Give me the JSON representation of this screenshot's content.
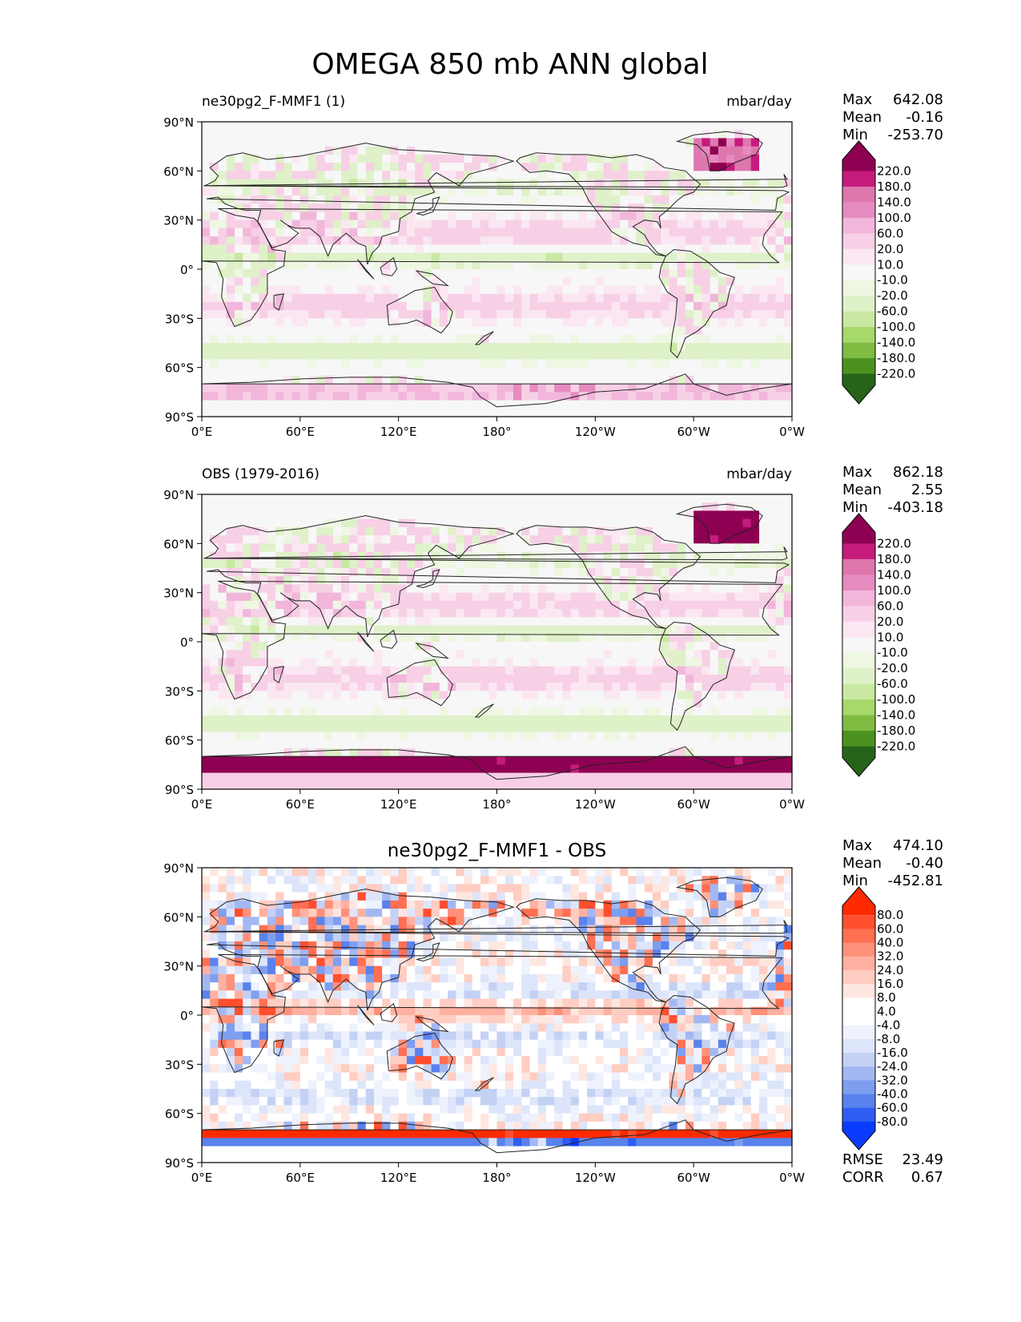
{
  "figure_title": "OMEGA 850 mb ANN global",
  "colors": {
    "pink_green": [
      "#276419",
      "#4d9221",
      "#7fbc41",
      "#a6d96a",
      "#c9e8a2",
      "#dff1c8",
      "#eef7e2",
      "#f7f7f7",
      "#fbe7f2",
      "#f7d0e6",
      "#f1b6da",
      "#e58bbf",
      "#de77ae",
      "#c51b7d",
      "#8e0152"
    ],
    "blue_red": [
      "#0a3cff",
      "#2f5ef4",
      "#5a82ec",
      "#7e9ef0",
      "#a3b8f2",
      "#c3d1f5",
      "#dde5fa",
      "#eef2fd",
      "#ffffff",
      "#ffffff",
      "#ffe7e1",
      "#ffcdc1",
      "#ffb0a0",
      "#ff9079",
      "#ff6f52",
      "#ff4f2e",
      "#ff2a00"
    ],
    "coast": "#222222"
  },
  "chart_data": [
    {
      "type": "heatmap",
      "panel_title_left": "ne30pg2_F-MMF1 (1)",
      "panel_title_center": "",
      "units": "mbar/day",
      "stats": [
        {
          "label": "Max",
          "value": "642.08"
        },
        {
          "label": "Mean",
          "value": "-0.16"
        },
        {
          "label": "Min",
          "value": "-253.70"
        }
      ],
      "colorbar_levels": [
        "220.0",
        "180.0",
        "140.0",
        "100.0",
        "60.0",
        "20.0",
        "10.0",
        "-10.0",
        "-20.0",
        "-60.0",
        "-100.0",
        "-140.0",
        "-180.0",
        "-220.0"
      ],
      "x_ticks": [
        "0°E",
        "60°E",
        "120°E",
        "180°",
        "120°W",
        "60°W",
        "0°W"
      ],
      "y_ticks": [
        "90°N",
        "60°N",
        "30°N",
        "0°",
        "30°S",
        "60°S",
        "90°S"
      ],
      "xlim": [
        0,
        360
      ],
      "ylim": [
        -90,
        90
      ]
    },
    {
      "type": "heatmap",
      "panel_title_left": "OBS (1979-2016)",
      "panel_title_center": "",
      "units": "mbar/day",
      "stats": [
        {
          "label": "Max",
          "value": "862.18"
        },
        {
          "label": "Mean",
          "value": "2.55"
        },
        {
          "label": "Min",
          "value": "-403.18"
        }
      ],
      "colorbar_levels": [
        "220.0",
        "180.0",
        "140.0",
        "100.0",
        "60.0",
        "20.0",
        "10.0",
        "-10.0",
        "-20.0",
        "-60.0",
        "-100.0",
        "-140.0",
        "-180.0",
        "-220.0"
      ],
      "x_ticks": [
        "0°E",
        "60°E",
        "120°E",
        "180°",
        "120°W",
        "60°W",
        "0°W"
      ],
      "y_ticks": [
        "90°N",
        "60°N",
        "30°N",
        "0°",
        "30°S",
        "60°S",
        "90°S"
      ],
      "xlim": [
        0,
        360
      ],
      "ylim": [
        -90,
        90
      ]
    },
    {
      "type": "heatmap",
      "panel_title_left": "",
      "panel_title_center": "ne30pg2_F-MMF1 - OBS",
      "units": "",
      "stats": [
        {
          "label": "Max",
          "value": "474.10"
        },
        {
          "label": "Mean",
          "value": "-0.40"
        },
        {
          "label": "Min",
          "value": "-452.81"
        }
      ],
      "colorbar_levels": [
        "80.0",
        "60.0",
        "40.0",
        "32.0",
        "24.0",
        "16.0",
        "8.0",
        "4.0",
        "-4.0",
        "-8.0",
        "-16.0",
        "-24.0",
        "-32.0",
        "-40.0",
        "-60.0",
        "-80.0"
      ],
      "x_ticks": [
        "0°E",
        "60°E",
        "120°E",
        "180°",
        "120°W",
        "60°W",
        "0°W"
      ],
      "y_ticks": [
        "90°N",
        "60°N",
        "30°N",
        "0°",
        "30°S",
        "60°S",
        "90°S"
      ],
      "xlim": [
        0,
        360
      ],
      "ylim": [
        -90,
        90
      ],
      "rmse": {
        "label": "RMSE",
        "value": "23.49"
      },
      "corr": {
        "label": "CORR",
        "value": "0.67"
      }
    }
  ]
}
